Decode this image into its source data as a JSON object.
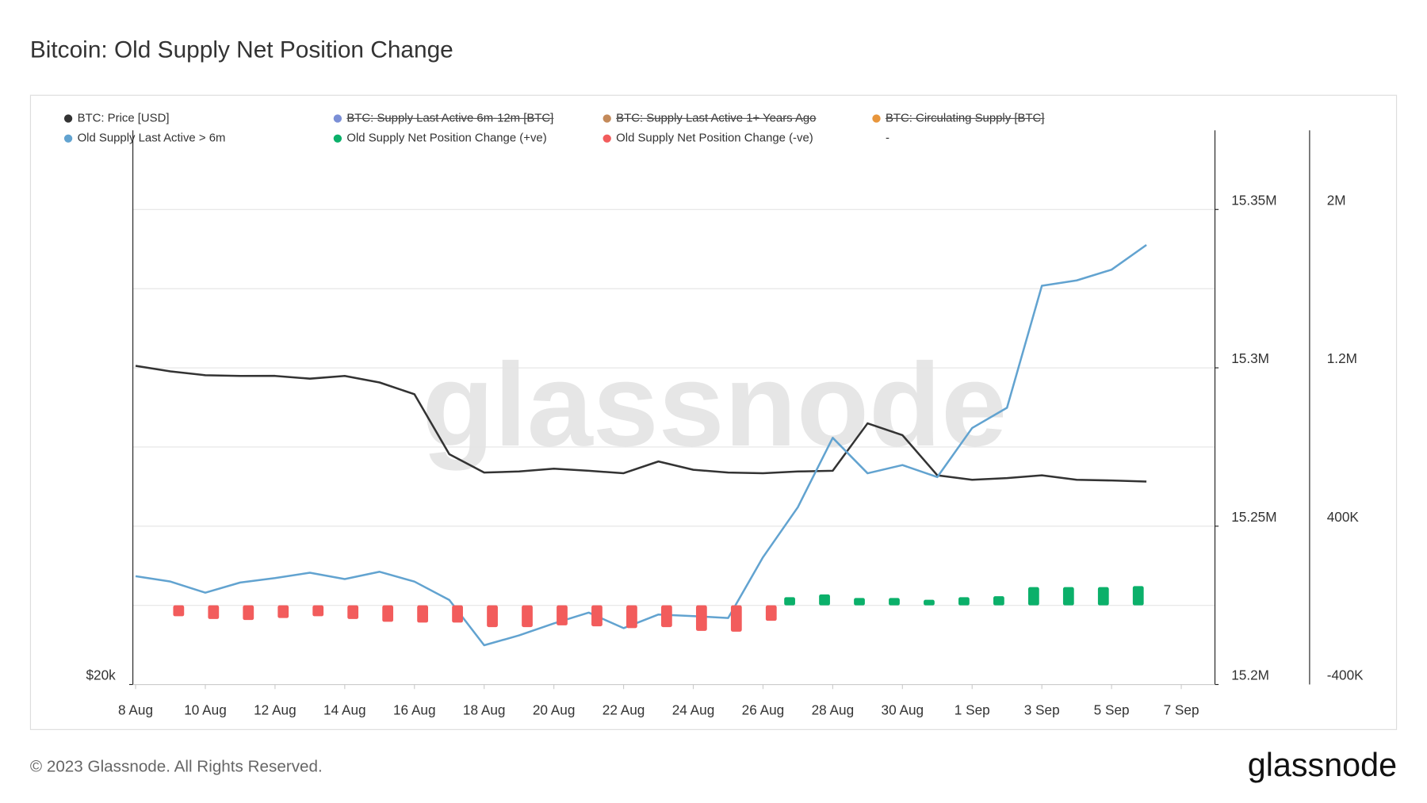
{
  "title": "Bitcoin: Old Supply Net Position Change",
  "footer": "© 2023 Glassnode. All Rights Reserved.",
  "logo": "glassnode",
  "watermark": "glassnode",
  "chart_data": {
    "type": "line",
    "categories": [
      "8 Aug",
      null,
      "10 Aug",
      null,
      "12 Aug",
      null,
      "14 Aug",
      null,
      "16 Aug",
      null,
      "18 Aug",
      null,
      "20 Aug",
      null,
      "22 Aug",
      null,
      "24 Aug",
      null,
      "26 Aug",
      null,
      "28 Aug",
      null,
      "30 Aug",
      null,
      "1 Sep",
      null,
      "3 Sep",
      null,
      "5 Sep",
      null,
      "7 Sep"
    ],
    "ylim": [
      20000,
      36000
    ],
    "yticks": [
      {
        "value": 20000,
        "label": "$20k"
      }
    ],
    "y2lim": [
      15200000,
      15375000
    ],
    "y2ticks": [
      {
        "value": 15200000,
        "label": "15.2M"
      },
      {
        "value": 15250000,
        "label": "15.25M"
      },
      {
        "value": 15300000,
        "label": "15.3M"
      },
      {
        "value": 15350000,
        "label": "15.35M"
      }
    ],
    "y3lim": [
      -400000,
      2400000
    ],
    "y3ticks": [
      {
        "value": -400000,
        "label": "-400K"
      },
      {
        "value": 400000,
        "label": "400K"
      },
      {
        "value": 1200000,
        "label": "1.2M"
      },
      {
        "value": 2000000,
        "label": "2M"
      }
    ],
    "grid": true,
    "series": [
      {
        "name": "BTC: Price [USD]",
        "color": "#333333",
        "type": "line",
        "axis": "y",
        "values": [
          29200,
          29040,
          28930,
          28910,
          28910,
          28830,
          28910,
          28720,
          28380,
          26650,
          26120,
          26150,
          26230,
          26170,
          26100,
          26440,
          26200,
          26120,
          26100,
          26150,
          26170,
          27540,
          27200,
          26040,
          25910,
          25960,
          26040,
          25910,
          25890,
          25860,
          null
        ]
      },
      {
        "name": "Old Supply Last Active > 6m",
        "color": "#62a3d0",
        "type": "line",
        "axis": "y2",
        "values": [
          15234200,
          15232500,
          15229000,
          15232200,
          15233600,
          15235300,
          15233300,
          15235600,
          15232500,
          15226700,
          15212400,
          15215500,
          15219300,
          15222700,
          15217800,
          15222100,
          15221600,
          15221000,
          15240200,
          15256000,
          15277900,
          15266700,
          15269300,
          15265500,
          15281000,
          15287400,
          15325900,
          15327600,
          15331000,
          15338800,
          null
        ]
      },
      {
        "name": "Old Supply Net Position Change (+ve)",
        "color": "#0bb06a",
        "type": "bar",
        "axis": "y3",
        "values": [
          null,
          null,
          null,
          null,
          null,
          null,
          null,
          null,
          null,
          null,
          null,
          null,
          null,
          null,
          null,
          null,
          null,
          null,
          null,
          41000,
          55000,
          37000,
          37000,
          28000,
          41000,
          46000,
          92000,
          92000,
          92000,
          97000,
          null
        ]
      },
      {
        "name": "Old Supply Net Position Change (-ve)",
        "color": "#f25c5c",
        "type": "bar",
        "axis": "y3",
        "values": [
          null,
          -55000,
          -69000,
          -74000,
          -64000,
          -55000,
          -69000,
          -83000,
          -87000,
          -87000,
          -110000,
          -110000,
          -101000,
          -106000,
          -115000,
          -110000,
          -129000,
          -133000,
          -78000,
          null,
          null,
          null,
          null,
          null,
          null,
          null,
          null,
          null,
          null,
          null,
          null
        ]
      }
    ],
    "hidden_series": [
      {
        "name": "BTC: Supply Last Active 6m-12m [BTC]",
        "color": "#7b8fd6"
      },
      {
        "name": "BTC: Supply Last Active 1+ Years Ago",
        "color": "#c48a5a"
      },
      {
        "name": "BTC: Circulating Supply [BTC]",
        "color": "#e8963c"
      }
    ],
    "legend_extra": "-"
  }
}
